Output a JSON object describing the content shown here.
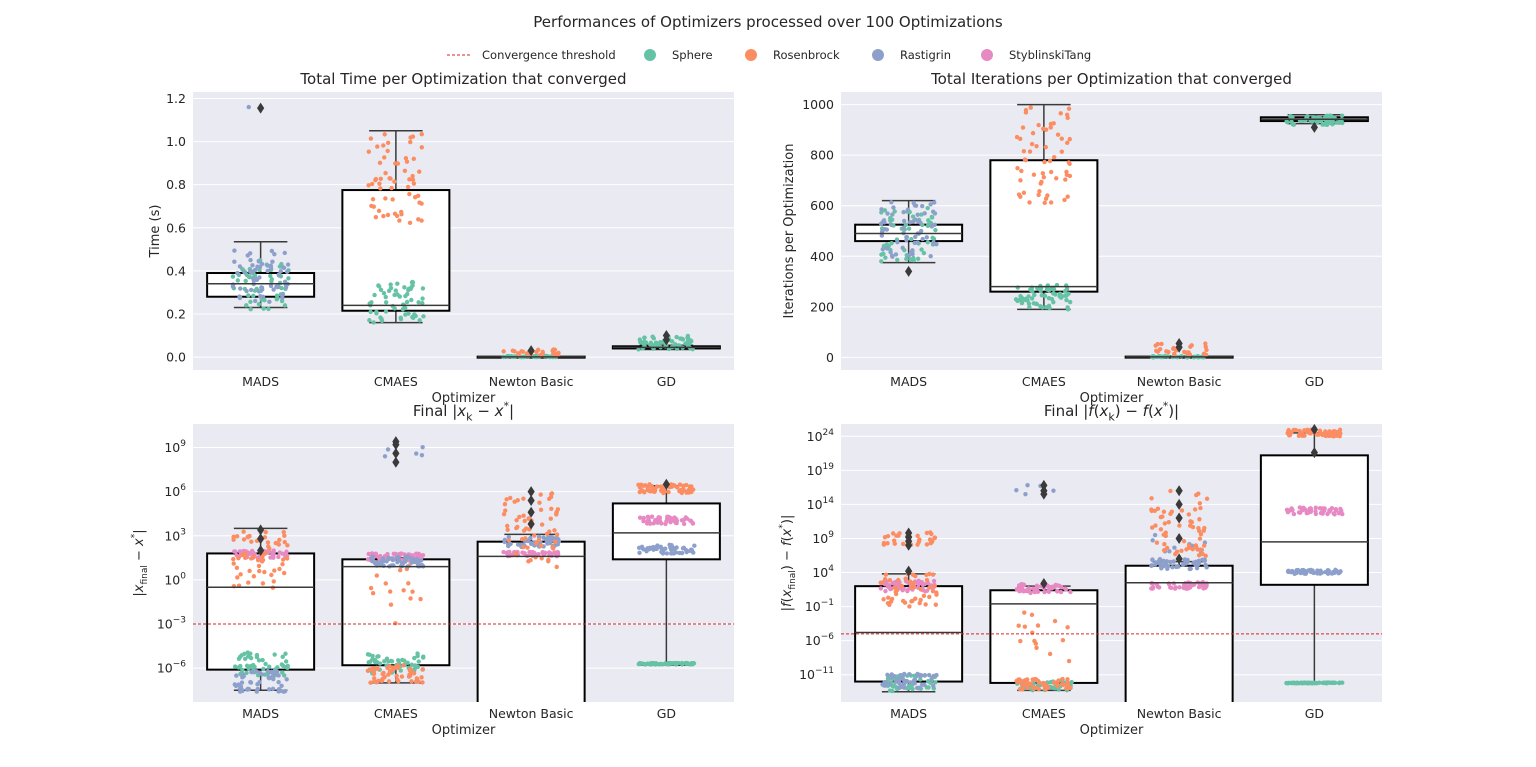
{
  "figure": {
    "title": "Performances of Optimizers processed over 100 Optimizations"
  },
  "legend": {
    "placement": "top-center",
    "entries": [
      {
        "label": "Convergence threshold",
        "kind": "line",
        "color": "#d62728"
      },
      {
        "label": "Sphere",
        "kind": "marker",
        "color": "#66c2a5"
      },
      {
        "label": "Rosenbrock",
        "kind": "marker",
        "color": "#fc8d62"
      },
      {
        "label": "Rastigrin",
        "kind": "marker",
        "color": "#8da0cb"
      },
      {
        "label": "StyblinskiTang",
        "kind": "marker",
        "color": "#e78ac3"
      }
    ]
  },
  "colors": {
    "Sphere": "#66c2a5",
    "Rosenbrock": "#fc8d62",
    "Rastigrin": "#8da0cb",
    "StyblinskiTang": "#e78ac3",
    "threshold": "#d62728",
    "panel_bg": "#eaeaf2",
    "grid": "#ffffff",
    "box_edge": "#000000",
    "whisker": "#3a3a3a",
    "flier": "#3a3a3a"
  },
  "chart_data": [
    {
      "type": "box",
      "title": "Total Time per Optimization that converged",
      "xlabel": "Optimizer",
      "ylabel": "Time (s)",
      "yscale": "linear",
      "ylim": [
        -0.06,
        1.23
      ],
      "yticks": [
        0.0,
        0.2,
        0.4,
        0.6,
        0.8,
        1.0,
        1.2
      ],
      "yticklabels": [
        "0.0",
        "0.2",
        "0.4",
        "0.6",
        "0.8",
        "1.0",
        "1.2"
      ],
      "categories": [
        "MADS",
        "CMAES",
        "Newton Basic",
        "GD"
      ],
      "boxes": [
        {
          "q1": 0.28,
          "median": 0.34,
          "q3": 0.39,
          "whislo": 0.23,
          "whishi": 0.535,
          "fliers": [
            1.155
          ]
        },
        {
          "q1": 0.215,
          "median": 0.24,
          "q3": 0.775,
          "whislo": 0.16,
          "whishi": 1.05,
          "fliers": []
        },
        {
          "q1": 0.0,
          "median": 0.001,
          "q3": 0.002,
          "whislo": 0.0,
          "whishi": 0.003,
          "fliers": [
            0.03
          ]
        },
        {
          "q1": 0.04,
          "median": 0.045,
          "q3": 0.05,
          "whislo": 0.035,
          "whishi": 0.055,
          "fliers": [
            0.08,
            0.1
          ]
        }
      ],
      "strips": [
        {
          "category": "MADS",
          "series": "Sphere",
          "n": 60,
          "min": 0.22,
          "max": 0.45
        },
        {
          "category": "MADS",
          "series": "Rastigrin",
          "n": 60,
          "min": 0.25,
          "max": 0.5
        },
        {
          "category": "MADS",
          "series": "Rastigrin",
          "n": 1,
          "min": 1.16,
          "max": 1.16
        },
        {
          "category": "CMAES",
          "series": "Sphere",
          "n": 60,
          "min": 0.16,
          "max": 0.35
        },
        {
          "category": "CMAES",
          "series": "Rosenbrock",
          "n": 60,
          "min": 0.62,
          "max": 1.05
        },
        {
          "category": "Newton Basic",
          "series": "Sphere",
          "n": 40,
          "min": 0.0,
          "max": 0.005
        },
        {
          "category": "Newton Basic",
          "series": "Rosenbrock",
          "n": 30,
          "min": 0.005,
          "max": 0.035
        },
        {
          "category": "GD",
          "series": "Sphere",
          "n": 60,
          "min": 0.035,
          "max": 0.1
        }
      ]
    },
    {
      "type": "box",
      "title": "Total Iterations per Optimization that converged",
      "xlabel": "Optimizer",
      "ylabel": "Iterations per Optimization",
      "yscale": "linear",
      "ylim": [
        -50,
        1050
      ],
      "yticks": [
        0,
        200,
        400,
        600,
        800,
        1000
      ],
      "yticklabels": [
        "0",
        "200",
        "400",
        "600",
        "800",
        "1000"
      ],
      "categories": [
        "MADS",
        "CMAES",
        "Newton Basic",
        "GD"
      ],
      "boxes": [
        {
          "q1": 460,
          "median": 490,
          "q3": 525,
          "whislo": 375,
          "whishi": 620,
          "fliers": [
            340
          ]
        },
        {
          "q1": 260,
          "median": 280,
          "q3": 780,
          "whislo": 190,
          "whishi": 1000,
          "fliers": []
        },
        {
          "q1": 0,
          "median": 2,
          "q3": 3,
          "whislo": 0,
          "whishi": 5,
          "fliers": [
            40,
            55
          ]
        },
        {
          "q1": 935,
          "median": 942,
          "q3": 950,
          "whislo": 925,
          "whishi": 960,
          "fliers": [
            910
          ]
        }
      ],
      "strips": [
        {
          "category": "MADS",
          "series": "Sphere",
          "n": 60,
          "min": 380,
          "max": 600
        },
        {
          "category": "MADS",
          "series": "Rastigrin",
          "n": 60,
          "min": 390,
          "max": 620
        },
        {
          "category": "CMAES",
          "series": "Sphere",
          "n": 60,
          "min": 190,
          "max": 290
        },
        {
          "category": "CMAES",
          "series": "Rosenbrock",
          "n": 60,
          "min": 610,
          "max": 1000
        },
        {
          "category": "Newton Basic",
          "series": "Sphere",
          "n": 40,
          "min": 0,
          "max": 5
        },
        {
          "category": "Newton Basic",
          "series": "Rosenbrock",
          "n": 25,
          "min": 5,
          "max": 55
        },
        {
          "category": "GD",
          "series": "Sphere",
          "n": 60,
          "min": 920,
          "max": 960
        }
      ]
    },
    {
      "type": "box",
      "title": "Final $|x_k - x^*|$",
      "title_parts": [
        "Final |",
        "x",
        "k",
        " − ",
        "x",
        "*",
        "|"
      ],
      "xlabel": "Optimizer",
      "ylabel": "$|x_{final} - x^*|$",
      "ylabel_parts": [
        "|",
        "x",
        "final",
        " − ",
        "x",
        "*",
        "|"
      ],
      "yscale": "log",
      "ylim_log10": [
        -8.3,
        10.6
      ],
      "yticks_exp": [
        -6,
        -3,
        0,
        3,
        6,
        9
      ],
      "yticklabels": [
        "10",
        "10",
        "10",
        "10",
        "10",
        "10"
      ],
      "yticklabel_exps": [
        "−6",
        "−3",
        "0",
        "3",
        "6",
        "9"
      ],
      "threshold_log10": -3,
      "categories": [
        "MADS",
        "CMAES",
        "Newton Basic",
        "GD"
      ],
      "boxes": [
        {
          "q1_exp": -6.1,
          "median_exp": -0.5,
          "q3_exp": 1.8,
          "whislo_exp": -7.5,
          "whishi_exp": 3.5,
          "fliers_exp": [
            2.0,
            2.8,
            3.4
          ]
        },
        {
          "q1_exp": -5.8,
          "median_exp": 0.9,
          "q3_exp": 1.4,
          "whislo_exp": -7.0,
          "whishi_exp": 1.5,
          "fliers_exp": [
            8.0,
            8.6,
            9.2,
            9.4
          ]
        },
        {
          "q1_exp": -12.0,
          "median_exp": 1.6,
          "q3_exp": 2.6,
          "whislo_exp": -12.0,
          "whishi_exp": 3.1,
          "fliers_exp": [
            3.8,
            4.6,
            5.4,
            6.0
          ]
        },
        {
          "q1_exp": 1.4,
          "median_exp": 3.2,
          "q3_exp": 5.2,
          "whislo_exp": -5.8,
          "whishi_exp": 6.4,
          "fliers_exp": [
            6.5
          ]
        }
      ],
      "strips": [
        {
          "category": "MADS",
          "series": "Sphere",
          "n": 50,
          "min_exp": -6.5,
          "max_exp": -4.8
        },
        {
          "category": "MADS",
          "series": "Rastigrin",
          "n": 50,
          "min_exp": -7.6,
          "max_exp": -6.2
        },
        {
          "category": "MADS",
          "series": "StyblinskiTang",
          "n": 50,
          "min_exp": 1.5,
          "max_exp": 2.0
        },
        {
          "category": "MADS",
          "series": "Rosenbrock",
          "n": 60,
          "min_exp": -0.6,
          "max_exp": 3.5
        },
        {
          "category": "CMAES",
          "series": "Sphere",
          "n": 50,
          "min_exp": -6.5,
          "max_exp": -5.0
        },
        {
          "category": "CMAES",
          "series": "Rosenbrock",
          "n": 50,
          "min_exp": -7.0,
          "max_exp": -5.8
        },
        {
          "category": "CMAES",
          "series": "Rosenbrock",
          "n": 15,
          "min_exp": -4.0,
          "max_exp": 1.0
        },
        {
          "category": "CMAES",
          "series": "StyblinskiTang",
          "n": 50,
          "min_exp": 1.3,
          "max_exp": 1.8
        },
        {
          "category": "CMAES",
          "series": "Rastigrin",
          "n": 50,
          "min_exp": 0.9,
          "max_exp": 1.6
        },
        {
          "category": "CMAES",
          "series": "Rastigrin",
          "n": 5,
          "min_exp": 8.4,
          "max_exp": 9.2
        },
        {
          "category": "Newton Basic",
          "series": "StyblinskiTang",
          "n": 50,
          "min_exp": 1.6,
          "max_exp": 1.9
        },
        {
          "category": "Newton Basic",
          "series": "Rastigrin",
          "n": 50,
          "min_exp": 2.2,
          "max_exp": 3.0
        },
        {
          "category": "Newton Basic",
          "series": "Rosenbrock",
          "n": 60,
          "min_exp": 0.8,
          "max_exp": 6.0
        },
        {
          "category": "GD",
          "series": "Sphere",
          "n": 60,
          "min_exp": -5.75,
          "max_exp": -5.65
        },
        {
          "category": "GD",
          "series": "Rastigrin",
          "n": 50,
          "min_exp": 1.8,
          "max_exp": 2.4
        },
        {
          "category": "GD",
          "series": "StyblinskiTang",
          "n": 50,
          "min_exp": 3.8,
          "max_exp": 4.3
        },
        {
          "category": "GD",
          "series": "Rosenbrock",
          "n": 60,
          "min_exp": 5.9,
          "max_exp": 6.5
        }
      ]
    },
    {
      "type": "box",
      "title": "Final $|f(x_k) - f(x^*)|$",
      "title_parts": [
        "Final |",
        "f",
        "(",
        "x",
        "k",
        ") − ",
        "f",
        "(",
        "x",
        "*",
        ")|"
      ],
      "xlabel": "Optimizer",
      "ylabel": "$|f(x_{final}) - f(x^*)|$",
      "ylabel_parts": [
        "|",
        "f",
        "(",
        "x",
        "final",
        ") − ",
        "f",
        "(",
        "x",
        "*",
        ")|"
      ],
      "yscale": "log",
      "ylim_log10": [
        -15.0,
        25.8
      ],
      "yticks_exp": [
        -11,
        -6,
        -1,
        4,
        9,
        14,
        19,
        24
      ],
      "yticklabels": [
        "10",
        "10",
        "10",
        "10",
        "10",
        "10",
        "10",
        "10"
      ],
      "yticklabel_exps": [
        "−11",
        "−6",
        "−1",
        "4",
        "9",
        "14",
        "19",
        "24"
      ],
      "threshold_log10": -5,
      "categories": [
        "MADS",
        "CMAES",
        "Newton Basic",
        "GD"
      ],
      "boxes": [
        {
          "q1_exp": -12.0,
          "median_exp": -4.8,
          "q3_exp": 2.0,
          "whislo_exp": -13.5,
          "whishi_exp": 3.8,
          "fliers_exp": [
            4.2,
            8.0,
            8.6,
            9.2,
            9.8
          ]
        },
        {
          "q1_exp": -12.2,
          "median_exp": -0.6,
          "q3_exp": 1.4,
          "whislo_exp": -13.3,
          "whishi_exp": 2.0,
          "fliers_exp": [
            2.4,
            15.5,
            16.0,
            16.8
          ]
        },
        {
          "q1_exp": -16.0,
          "median_exp": 2.5,
          "q3_exp": 5.0,
          "whislo_exp": -16.0,
          "whishi_exp": 5.6,
          "fliers_exp": [
            6.0,
            9.0,
            12.0,
            14.0,
            16.0
          ]
        },
        {
          "q1_exp": 2.2,
          "median_exp": 8.5,
          "q3_exp": 21.2,
          "whislo_exp": -12.2,
          "whishi_exp": 24.5,
          "fliers_exp": [
            21.6,
            25.0
          ]
        }
      ],
      "strips": [
        {
          "category": "MADS",
          "series": "Sphere",
          "n": 50,
          "min_exp": -13.4,
          "max_exp": -11.0
        },
        {
          "category": "MADS",
          "series": "Rastigrin",
          "n": 50,
          "min_exp": -13.0,
          "max_exp": -10.8
        },
        {
          "category": "MADS",
          "series": "StyblinskiTang",
          "n": 50,
          "min_exp": 1.2,
          "max_exp": 2.8
        },
        {
          "category": "MADS",
          "series": "Rosenbrock",
          "n": 50,
          "min_exp": -1.0,
          "max_exp": 3.8
        },
        {
          "category": "MADS",
          "series": "Rosenbrock",
          "n": 30,
          "min_exp": 8.0,
          "max_exp": 9.9
        },
        {
          "category": "CMAES",
          "series": "Sphere",
          "n": 50,
          "min_exp": -13.3,
          "max_exp": -11.8
        },
        {
          "category": "CMAES",
          "series": "Rosenbrock",
          "n": 50,
          "min_exp": -13.2,
          "max_exp": -11.6
        },
        {
          "category": "CMAES",
          "series": "Rosenbrock",
          "n": 15,
          "min_exp": -9.0,
          "max_exp": -1.0
        },
        {
          "category": "CMAES",
          "series": "StyblinskiTang",
          "n": 50,
          "min_exp": 1.0,
          "max_exp": 2.3
        },
        {
          "category": "CMAES",
          "series": "Rastigrin",
          "n": 5,
          "min_exp": 15.5,
          "max_exp": 17.0
        },
        {
          "category": "Newton Basic",
          "series": "StyblinskiTang",
          "n": 50,
          "min_exp": 1.6,
          "max_exp": 2.6
        },
        {
          "category": "Newton Basic",
          "series": "Rastigrin",
          "n": 50,
          "min_exp": 4.5,
          "max_exp": 6.0
        },
        {
          "category": "Newton Basic",
          "series": "Rastigrin",
          "n": 10,
          "min_exp": 7.0,
          "max_exp": 9.5
        },
        {
          "category": "Newton Basic",
          "series": "Rosenbrock",
          "n": 60,
          "min_exp": 6.0,
          "max_exp": 16.0
        },
        {
          "category": "GD",
          "series": "Sphere",
          "n": 60,
          "min_exp": -12.25,
          "max_exp": -12.15
        },
        {
          "category": "GD",
          "series": "Rastigrin",
          "n": 50,
          "min_exp": 3.8,
          "max_exp": 4.4
        },
        {
          "category": "GD",
          "series": "StyblinskiTang",
          "n": 50,
          "min_exp": 12.5,
          "max_exp": 13.6
        },
        {
          "category": "GD",
          "series": "Rosenbrock",
          "n": 60,
          "min_exp": 24.0,
          "max_exp": 25.0
        }
      ]
    }
  ]
}
